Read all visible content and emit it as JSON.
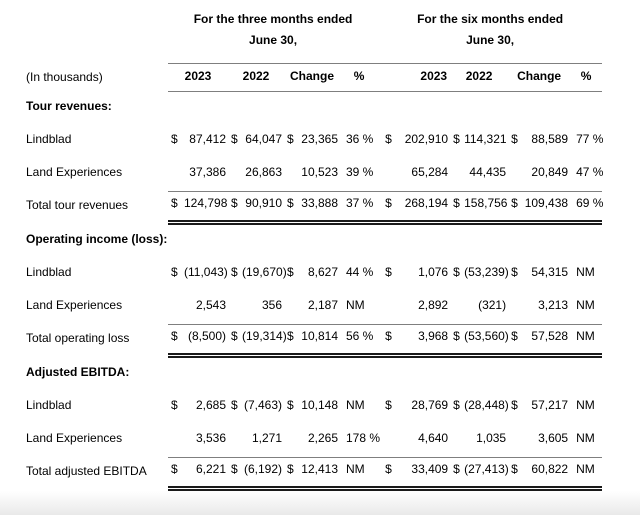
{
  "theme": {
    "background": "#ffffff",
    "text_color": "#000000",
    "line_color": "#7f7f7f",
    "double_line_color": "#1a1a1a",
    "footer_fade": "#e9e9e9"
  },
  "table": {
    "corner_label": "(In thousands)",
    "groups": [
      {
        "title": "For the three months ended",
        "subtitle": "June 30,"
      },
      {
        "title": "For the six months ended",
        "subtitle": "June 30,"
      }
    ],
    "col_headers": [
      "2023",
      "2022",
      "Change",
      "%",
      "2023",
      "2022",
      "Change",
      "%"
    ],
    "sections": [
      {
        "title": "Tour revenues:",
        "rows": [
          {
            "label": "Lindblad",
            "cells": [
              "$",
              "87,412",
              "$",
              "64,047",
              "$",
              "23,365",
              "36 %",
              "$",
              "202,910",
              "$",
              "114,321",
              "$",
              "88,589",
              "77 %"
            ]
          },
          {
            "label": "Land Experiences",
            "cells": [
              "",
              "37,386",
              "",
              "26,863",
              "",
              "10,523",
              "39 %",
              "",
              "65,284",
              "",
              "44,435",
              "",
              "20,849",
              "47 %"
            ]
          }
        ],
        "total": {
          "label": "Total tour revenues",
          "cells": [
            "$",
            "124,798",
            "$",
            "90,910",
            "$",
            "33,888",
            "37 %",
            "$",
            "268,194",
            "$",
            "158,756",
            "$",
            "109,438",
            "69 %"
          ]
        }
      },
      {
        "title": "Operating income (loss):",
        "rows": [
          {
            "label": "Lindblad",
            "cells": [
              "$",
              "(11,043)",
              "$",
              "(19,670)",
              "$",
              "8,627",
              "44 %",
              "$",
              "1,076",
              "$",
              "(53,239)",
              "$",
              "54,315",
              "NM"
            ]
          },
          {
            "label": "Land Experiences",
            "cells": [
              "",
              "2,543",
              "",
              "356",
              "",
              "2,187",
              "NM",
              "",
              "2,892",
              "",
              "(321)",
              "",
              "3,213",
              "NM"
            ]
          }
        ],
        "total": {
          "label": "Total operating loss",
          "cells": [
            "$",
            "(8,500)",
            "$",
            "(19,314)",
            "$",
            "10,814",
            "56 %",
            "$",
            "3,968",
            "$",
            "(53,560)",
            "$",
            "57,528",
            "NM"
          ]
        }
      },
      {
        "title": "Adjusted EBITDA:",
        "rows": [
          {
            "label": "Lindblad",
            "cells": [
              "$",
              "2,685",
              "$",
              "(7,463)",
              "$",
              "10,148",
              "NM",
              "$",
              "28,769",
              "$",
              "(28,448)",
              "$",
              "57,217",
              "NM"
            ]
          },
          {
            "label": "Land Experiences",
            "cells": [
              "",
              "3,536",
              "",
              "1,271",
              "",
              "2,265",
              "178 %",
              "",
              "4,640",
              "",
              "1,035",
              "",
              "3,605",
              "NM"
            ]
          }
        ],
        "total": {
          "label": "Total adjusted EBITDA",
          "cells": [
            "$",
            "6,221",
            "$",
            "(6,192)",
            "$",
            "12,413",
            "NM",
            "$",
            "33,409",
            "$",
            "(27,413)",
            "$",
            "60,822",
            "NM"
          ]
        }
      }
    ]
  }
}
